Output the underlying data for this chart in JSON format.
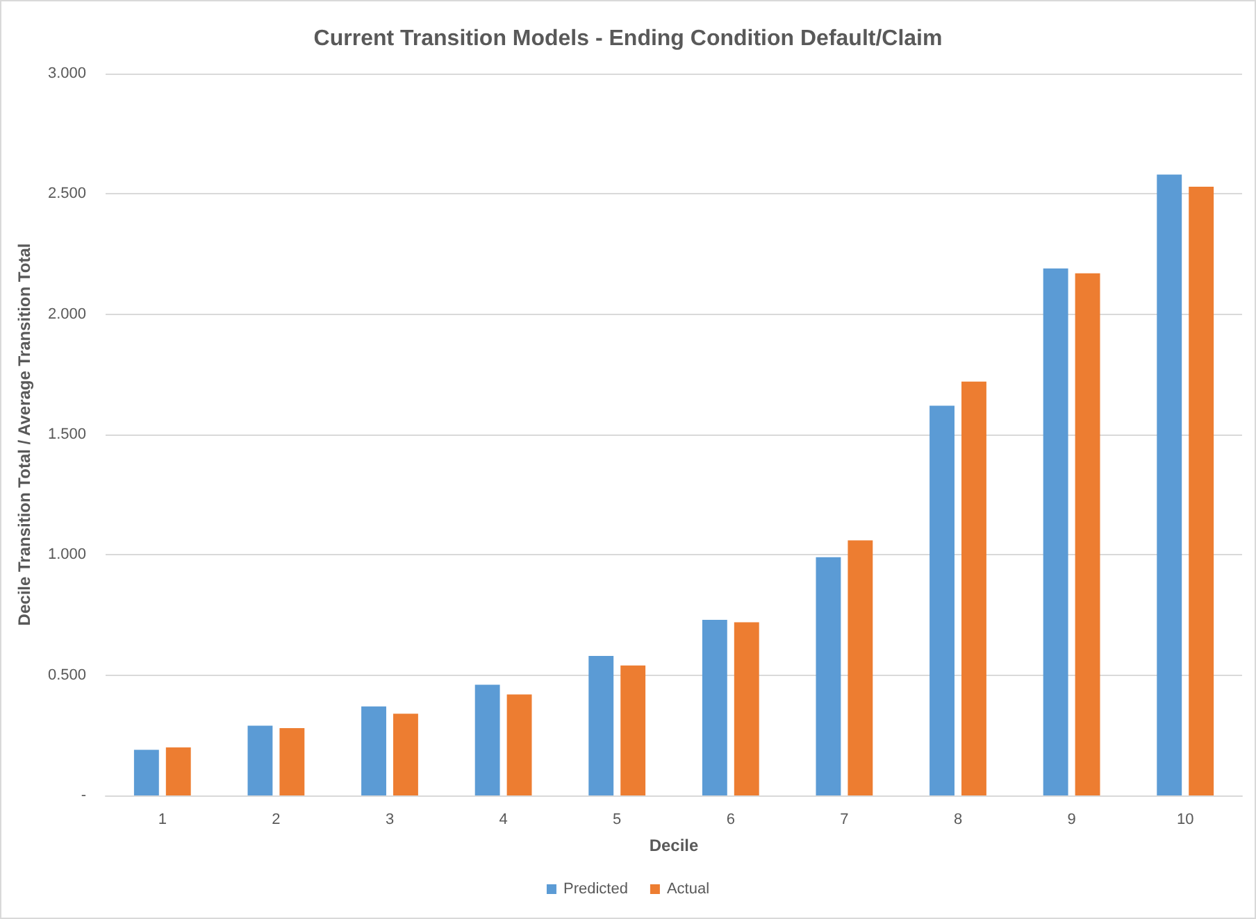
{
  "chart_data": {
    "type": "bar",
    "title": "Current Transition Models - Ending Condition Default/Claim",
    "xlabel": "Decile",
    "ylabel": "Decile Transition Total / Average Transition Total",
    "categories": [
      "1",
      "2",
      "3",
      "4",
      "5",
      "6",
      "7",
      "8",
      "9",
      "10"
    ],
    "series": [
      {
        "name": "Predicted",
        "color": "#5b9bd5",
        "values": [
          0.19,
          0.29,
          0.37,
          0.46,
          0.58,
          0.73,
          0.99,
          1.62,
          2.19,
          2.58
        ]
      },
      {
        "name": "Actual",
        "color": "#ed7d31",
        "values": [
          0.2,
          0.28,
          0.34,
          0.42,
          0.54,
          0.72,
          1.06,
          1.72,
          2.17,
          2.53
        ]
      }
    ],
    "ylim": [
      0,
      3
    ],
    "yticks": [
      {
        "value": 0,
        "label": "-"
      },
      {
        "value": 0.5,
        "label": "0.500"
      },
      {
        "value": 1,
        "label": "1.000"
      },
      {
        "value": 1.5,
        "label": "1.500"
      },
      {
        "value": 2,
        "label": "2.000"
      },
      {
        "value": 2.5,
        "label": "2.500"
      },
      {
        "value": 3,
        "label": "3.000"
      }
    ],
    "grid": "y",
    "legend": "bottom"
  }
}
